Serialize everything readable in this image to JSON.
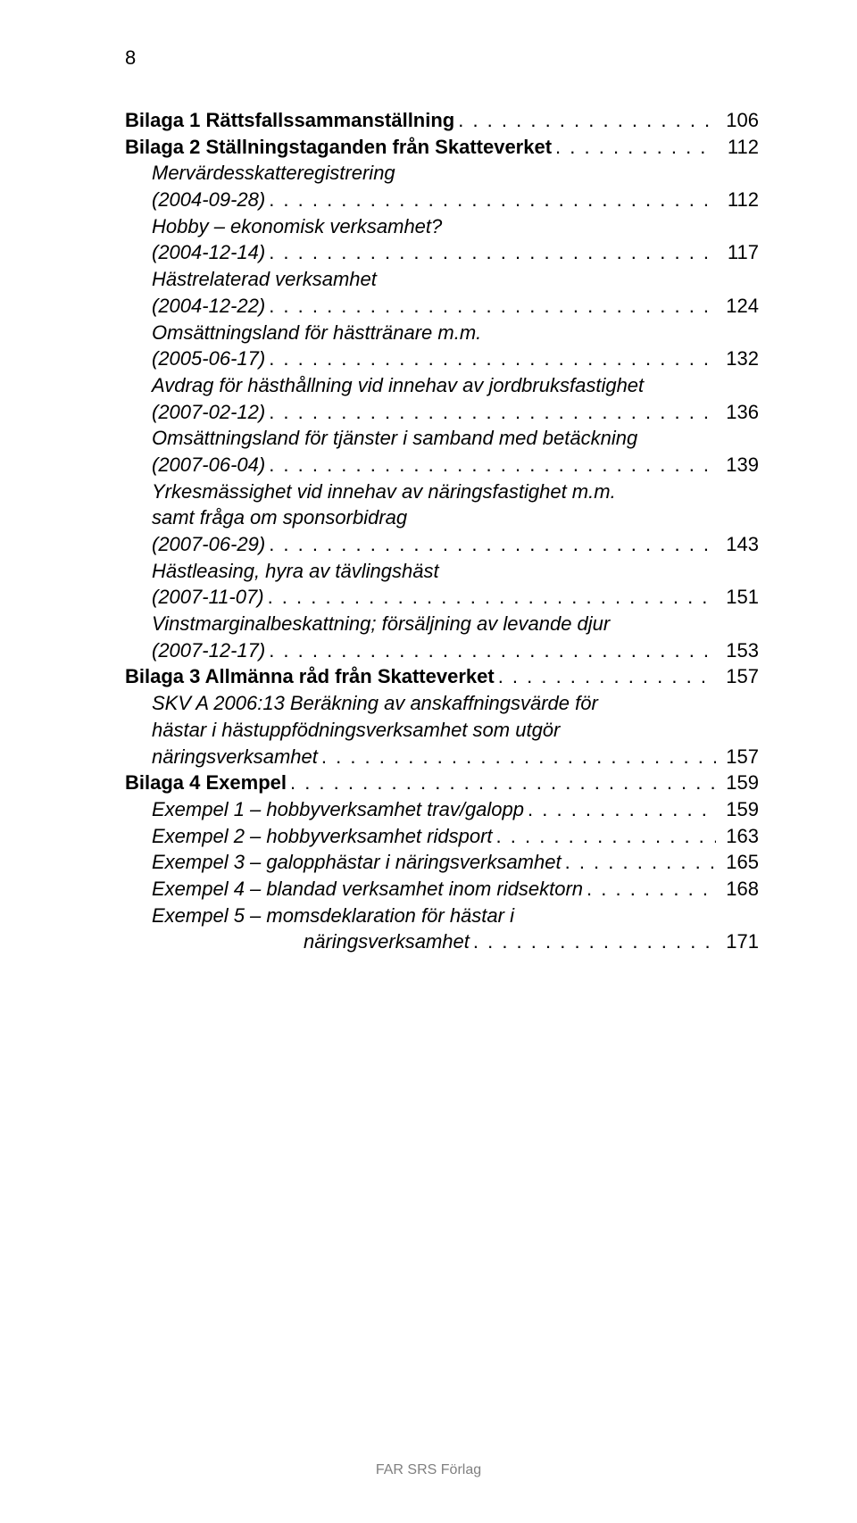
{
  "page_number": "8",
  "footer": "FAR SRS Förlag",
  "toc": [
    {
      "label": "Bilaga 1 Rättsfallssammanställning",
      "page": "106",
      "bold": true,
      "italic": false,
      "indent": 0,
      "continuation": false
    },
    {
      "label": "Bilaga 2 Ställningstaganden från Skatteverket",
      "page": "112",
      "bold": true,
      "italic": false,
      "indent": 0,
      "continuation": false
    },
    {
      "label": "Mervärdesskatteregistrering",
      "page": "",
      "bold": false,
      "italic": true,
      "indent": 1,
      "continuation": true
    },
    {
      "label": "(2004-09-28)",
      "page": "112",
      "bold": false,
      "italic": true,
      "indent": 1,
      "continuation": false
    },
    {
      "label": "Hobby – ekonomisk verksamhet?",
      "page": "",
      "bold": false,
      "italic": true,
      "indent": 1,
      "continuation": true
    },
    {
      "label": "(2004-12-14)",
      "page": "117",
      "bold": false,
      "italic": true,
      "indent": 1,
      "continuation": false
    },
    {
      "label": "Hästrelaterad verksamhet",
      "page": "",
      "bold": false,
      "italic": true,
      "indent": 1,
      "continuation": true
    },
    {
      "label": "(2004-12-22)",
      "page": "124",
      "bold": false,
      "italic": true,
      "indent": 1,
      "continuation": false
    },
    {
      "label": "Omsättningsland för hästtränare m.m.",
      "page": "",
      "bold": false,
      "italic": true,
      "indent": 1,
      "continuation": true
    },
    {
      "label": "(2005-06-17)",
      "page": "132",
      "bold": false,
      "italic": true,
      "indent": 1,
      "continuation": false
    },
    {
      "label": "Avdrag för hästhållning vid innehav av jordbruksfastighet",
      "page": "",
      "bold": false,
      "italic": true,
      "indent": 1,
      "continuation": true
    },
    {
      "label": "(2007-02-12)",
      "page": "136",
      "bold": false,
      "italic": true,
      "indent": 1,
      "continuation": false
    },
    {
      "label": "Omsättningsland för tjänster i samband med betäckning",
      "page": "",
      "bold": false,
      "italic": true,
      "indent": 1,
      "continuation": true
    },
    {
      "label": "(2007-06-04)",
      "page": "139",
      "bold": false,
      "italic": true,
      "indent": 1,
      "continuation": false
    },
    {
      "label": "Yrkesmässighet vid innehav av näringsfastighet m.m.",
      "page": "",
      "bold": false,
      "italic": true,
      "indent": 1,
      "continuation": true
    },
    {
      "label": "samt fråga om sponsorbidrag",
      "page": "",
      "bold": false,
      "italic": true,
      "indent": 1,
      "continuation": true
    },
    {
      "label": "(2007-06-29)",
      "page": "143",
      "bold": false,
      "italic": true,
      "indent": 1,
      "continuation": false
    },
    {
      "label": "Hästleasing, hyra av tävlingshäst",
      "page": "",
      "bold": false,
      "italic": true,
      "indent": 1,
      "continuation": true
    },
    {
      "label": "(2007-11-07)",
      "page": "151",
      "bold": false,
      "italic": true,
      "indent": 1,
      "continuation": false
    },
    {
      "label": "Vinstmarginalbeskattning; försäljning av levande djur",
      "page": "",
      "bold": false,
      "italic": true,
      "indent": 1,
      "continuation": true
    },
    {
      "label": "(2007-12-17)",
      "page": "153",
      "bold": false,
      "italic": true,
      "indent": 1,
      "continuation": false
    },
    {
      "label": "Bilaga 3 Allmänna råd från Skatteverket",
      "page": "157",
      "bold": true,
      "italic": false,
      "indent": 0,
      "continuation": false
    },
    {
      "label": "SKV A 2006:13 Beräkning av anskaffningsvärde för",
      "page": "",
      "bold": false,
      "italic": true,
      "indent": 1,
      "continuation": true
    },
    {
      "label": "hästar i hästuppfödningsverksamhet som utgör",
      "page": "",
      "bold": false,
      "italic": true,
      "indent": 1,
      "continuation": true
    },
    {
      "label": "näringsverksamhet",
      "page": "157",
      "bold": false,
      "italic": true,
      "indent": 1,
      "continuation": false
    },
    {
      "label": "Bilaga 4 Exempel",
      "page": "159",
      "bold": true,
      "italic": false,
      "indent": 0,
      "continuation": false
    },
    {
      "label": "Exempel 1 – hobbyverksamhet trav/galopp",
      "page": "159",
      "bold": false,
      "italic": true,
      "indent": 1,
      "continuation": false
    },
    {
      "label": "Exempel 2 – hobbyverksamhet ridsport",
      "page": "163",
      "bold": false,
      "italic": true,
      "indent": 1,
      "continuation": false
    },
    {
      "label": "Exempel 3 – galopphästar i näringsverksamhet",
      "page": "165",
      "bold": false,
      "italic": true,
      "indent": 1,
      "continuation": false
    },
    {
      "label": "Exempel 4 – blandad verksamhet inom ridsektorn",
      "page": "168",
      "bold": false,
      "italic": true,
      "indent": 1,
      "continuation": false
    },
    {
      "label": "Exempel 5 – momsdeklaration för hästar i",
      "page": "",
      "bold": false,
      "italic": true,
      "indent": 1,
      "continuation": true
    },
    {
      "label": "näringsverksamhet",
      "page": "171",
      "bold": false,
      "italic": true,
      "indent": 2,
      "continuation": false
    }
  ]
}
